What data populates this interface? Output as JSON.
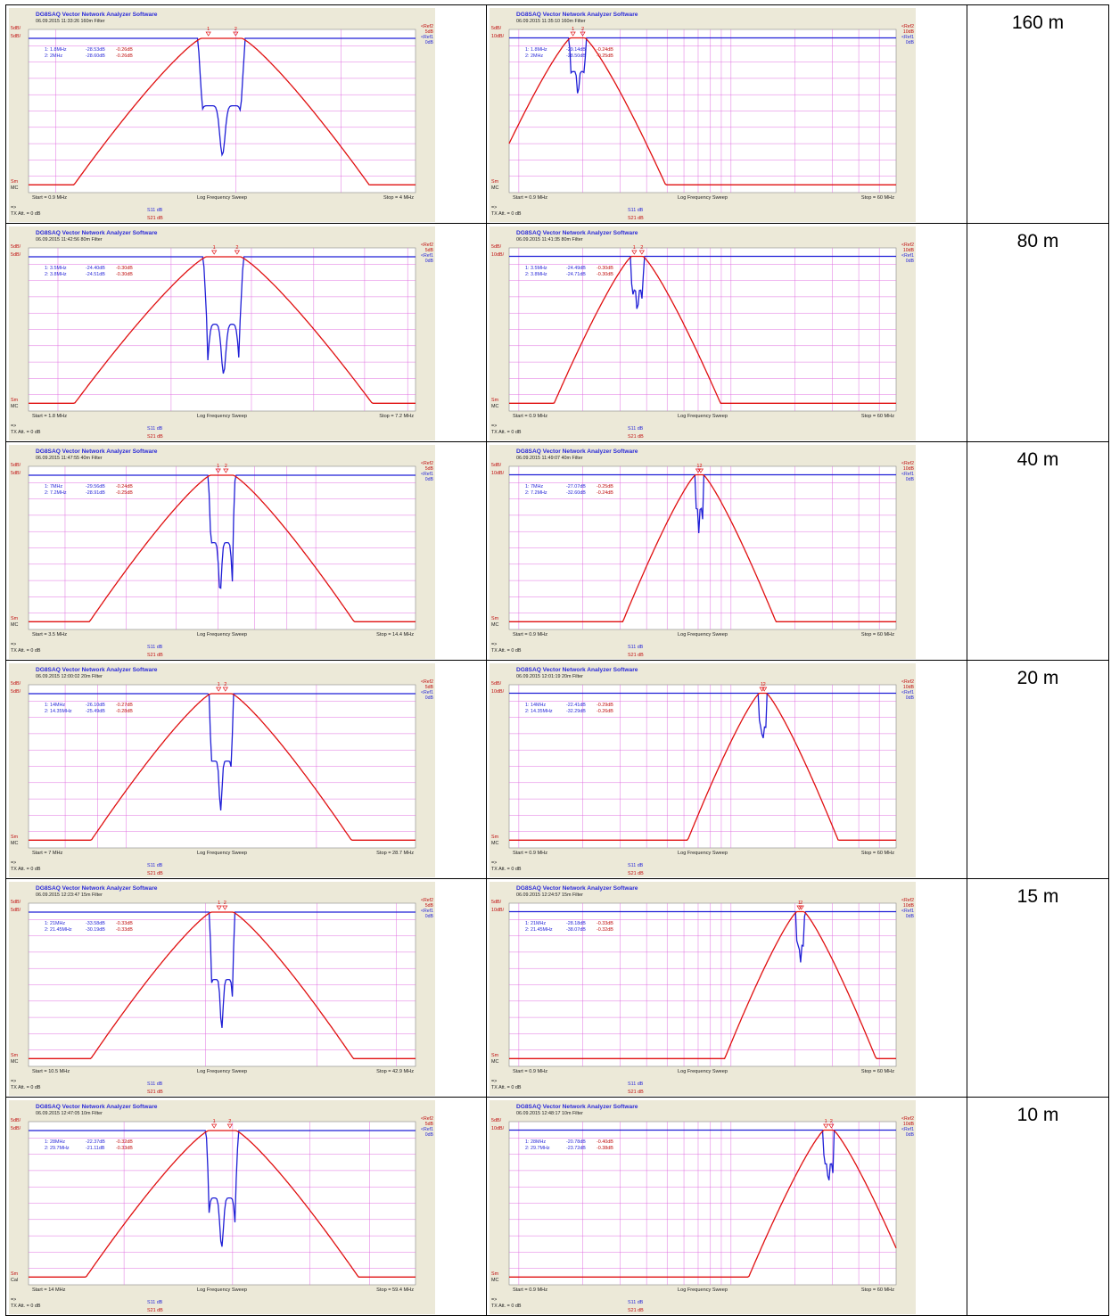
{
  "app_title": "DG8SAQ Vector Network Analyzer Software",
  "colors": {
    "s11": "#1f1fd6",
    "s21": "#e01010",
    "grid": "#e070e0",
    "panel": "#ece9d8",
    "plot_bg": "#ffffff"
  },
  "common": {
    "sweep_label": "Log Frequency Sweep",
    "ref1_label": "<Ref1",
    "ref1_value": "0dB",
    "ref2_label": "<Ref2",
    "scale_top": "5dB/",
    "sm_label": "Sm",
    "arrow": "=>",
    "tx_att": "TX Att.  = 0 dB",
    "s11_legend": "S11  dB",
    "s21_legend": "S21  dB"
  },
  "rows": [
    {
      "band": "160 m",
      "left": {
        "stamp": "06.09.2015  11:33:26   160m Filter",
        "start": "Start = 0.9 MHz",
        "stop": "Stop = 4 MHz",
        "scale2": "5dB/",
        "ref2_value": "5dB",
        "mode": "MC",
        "markers": [
          [
            "1: 1.8MHz",
            "-28.53dB",
            "-0.26dB"
          ],
          [
            "2: 2MHz",
            "-28.60dB",
            "-0.26dB"
          ]
        ]
      },
      "right": {
        "stamp": "06.09.2015  11:35:10   160m Filter",
        "start": "Start = 0.9 MHz",
        "stop": "Stop = 60 MHz",
        "scale2": "10dB/",
        "ref2_value": "10dB",
        "mode": "MC",
        "markers": [
          [
            "1: 1.8MHz",
            "-29.14dB",
            "-0.24dB"
          ],
          [
            "2: 2MHz",
            "-28.50dB",
            "-0.25dB"
          ]
        ]
      }
    },
    {
      "band": "80 m",
      "left": {
        "stamp": "06.09.2015  11:42:56   80m Filter",
        "start": "Start = 1.8 MHz",
        "stop": "Stop = 7.2 MHz",
        "scale2": "5dB/",
        "ref2_value": "5dB",
        "mode": "MC",
        "markers": [
          [
            "1: 3.5MHz",
            "-24.40dB",
            "-0.30dB"
          ],
          [
            "2: 3.8MHz",
            "-24.51dB",
            "-0.30dB"
          ]
        ]
      },
      "right": {
        "stamp": "06.09.2015  11:41:35   80m Filter",
        "start": "Start = 0.9 MHz",
        "stop": "Stop = 60 MHz",
        "scale2": "10dB/",
        "ref2_value": "10dB",
        "mode": "MC",
        "markers": [
          [
            "1: 3.5MHz",
            "-24.49dB",
            "-0.30dB"
          ],
          [
            "2: 3.8MHz",
            "-24.71dB",
            "-0.30dB"
          ]
        ]
      }
    },
    {
      "band": "40 m",
      "left": {
        "stamp": "06.09.2015  11:47:55   40m Filter",
        "start": "Start = 3.5 MHz",
        "stop": "Stop = 14.4 MHz",
        "scale2": "5dB/",
        "ref2_value": "5dB",
        "mode": "MC",
        "markers": [
          [
            "1: 7MHz",
            "-29.56dB",
            "-0.24dB"
          ],
          [
            "2: 7.2MHz",
            "-28.91dB",
            "-0.25dB"
          ]
        ]
      },
      "right": {
        "stamp": "06.09.2015  11:49:07   40m Filter",
        "start": "Start = 0.9 MHz",
        "stop": "Stop = 60 MHz",
        "scale2": "10dB/",
        "ref2_value": "10dB",
        "mode": "MC",
        "markers": [
          [
            "1: 7MHz",
            "-27.07dB",
            "-0.25dB"
          ],
          [
            "2: 7.2MHz",
            "-32.60dB",
            "-0.24dB"
          ]
        ]
      }
    },
    {
      "band": "20 m",
      "left": {
        "stamp": "06.09.2015  12:00:02   20m Filter",
        "start": "Start = 7 MHz",
        "stop": "Stop = 28.7 MHz",
        "scale2": "5dB/",
        "ref2_value": "5dB",
        "mode": "MC",
        "markers": [
          [
            "1: 14MHz",
            "-26.10dB",
            "-0.27dB"
          ],
          [
            "2: 14.35MHz",
            "-25.49dB",
            "-0.28dB"
          ]
        ]
      },
      "right": {
        "stamp": "06.09.2015  12:01:19   20m Filter",
        "start": "Start = 0.9 MHz",
        "stop": "Stop = 60 MHz",
        "scale2": "10dB/",
        "ref2_value": "10dB",
        "mode": "MC",
        "markers": [
          [
            "1: 14MHz",
            "-22.41dB",
            "-0.29dB"
          ],
          [
            "2: 14.35MHz",
            "-32.29dB",
            "-0.26dB"
          ]
        ]
      }
    },
    {
      "band": "15 m",
      "left": {
        "stamp": "06.09.2015  12:23:47   15m Filter",
        "start": "Start = 10.5 MHz",
        "stop": "Stop = 42.9 MHz",
        "scale2": "5dB/",
        "ref2_value": "5dB",
        "mode": "MC",
        "markers": [
          [
            "1: 21MHz",
            "-33.58dB",
            "-0.33dB"
          ],
          [
            "2: 21.45MHz",
            "-30.19dB",
            "-0.33dB"
          ]
        ]
      },
      "right": {
        "stamp": "06.09.2015  12:24:57   15m Filter",
        "start": "Start = 0.9 MHz",
        "stop": "Stop = 60 MHz",
        "scale2": "10dB/",
        "ref2_value": "10dB",
        "mode": "MC",
        "markers": [
          [
            "1: 21MHz",
            "-28.18dB",
            "-0.33dB"
          ],
          [
            "2: 21.45MHz",
            "-38.07dB",
            "-0.32dB"
          ]
        ]
      }
    },
    {
      "band": "10 m",
      "left": {
        "stamp": "06.09.2015  12:47:05   10m Filter",
        "start": "Start = 14 MHz",
        "stop": "Stop = 59.4 MHz",
        "scale2": "5dB/",
        "ref2_value": "5dB",
        "mode": "Cal",
        "markers": [
          [
            "1: 28MHz",
            "-22.37dB",
            "-0.32dB"
          ],
          [
            "2: 29.7MHz",
            "-21.11dB",
            "-0.33dB"
          ]
        ]
      },
      "right": {
        "stamp": "06.09.2015  12:48:17   10m Filter",
        "start": "Start = 0.9 MHz",
        "stop": "Stop = 60 MHz",
        "scale2": "10dB/",
        "ref2_value": "10dB",
        "mode": "MC",
        "markers": [
          [
            "1: 28MHz",
            "-20.78dB",
            "-0.40dB"
          ],
          [
            "2: 29.7MHz",
            "-23.72dB",
            "-0.38dB"
          ]
        ]
      }
    }
  ],
  "chart_data": [
    {
      "type": "line",
      "band": "160m",
      "x_scale": "log",
      "xlim": [
        0.9,
        4
      ],
      "x_unit": "MHz",
      "title": "DG8SAQ Vector Network Analyzer Software",
      "xlabel": "Log Frequency Sweep",
      "markers_mhz": [
        1.8,
        2.0
      ],
      "series": [
        {
          "name": "S11",
          "s11_notches": [
            [
              1.72,
              -38
            ],
            [
              1.9,
              -38
            ],
            [
              2.08,
              -38
            ]
          ]
        },
        {
          "name": "S21",
          "passband": [
            1.75,
            2.05
          ]
        }
      ]
    },
    {
      "type": "line",
      "band": "160m",
      "x_scale": "log",
      "xlim": [
        0.9,
        60
      ],
      "x_unit": "MHz",
      "title": "DG8SAQ Vector Network Analyzer Software",
      "xlabel": "Log Frequency Sweep",
      "markers_mhz": [
        1.8,
        2.0
      ],
      "series": [
        {
          "name": "S11",
          "s11_notches": [
            [
              1.72,
              -38
            ],
            [
              1.9,
              -38
            ],
            [
              2.08,
              -38
            ]
          ]
        },
        {
          "name": "S21",
          "passband": [
            1.75,
            2.05
          ]
        }
      ]
    },
    {
      "type": "line",
      "band": "80m",
      "x_scale": "log",
      "xlim": [
        1.8,
        7.2
      ],
      "x_unit": "MHz",
      "title": "DG8SAQ Vector Network Analyzer Software",
      "xlabel": "Log Frequency Sweep",
      "markers_mhz": [
        3.5,
        3.8
      ],
      "series": [
        {
          "name": "S11",
          "s11_notches": [
            [
              3.4,
              -38
            ],
            [
              3.62,
              -38
            ],
            [
              3.85,
              -38
            ]
          ]
        },
        {
          "name": "S21",
          "passband": [
            3.4,
            3.85
          ]
        }
      ]
    },
    {
      "type": "line",
      "band": "80m",
      "x_scale": "log",
      "xlim": [
        0.9,
        60
      ],
      "x_unit": "MHz",
      "title": "DG8SAQ Vector Network Analyzer Software",
      "xlabel": "Log Frequency Sweep",
      "markers_mhz": [
        3.5,
        3.8
      ],
      "series": [
        {
          "name": "S11",
          "s11_notches": [
            [
              3.4,
              -38
            ],
            [
              3.62,
              -38
            ],
            [
              3.85,
              -38
            ]
          ]
        },
        {
          "name": "S21",
          "passband": [
            3.4,
            3.85
          ]
        }
      ]
    },
    {
      "type": "line",
      "band": "40m",
      "x_scale": "log",
      "xlim": [
        3.5,
        14.4
      ],
      "x_unit": "MHz",
      "title": "DG8SAQ Vector Network Analyzer Software",
      "xlabel": "Log Frequency Sweep",
      "markers_mhz": [
        7.0,
        7.2
      ],
      "series": [
        {
          "name": "S11",
          "s11_notches": [
            [
              6.72,
              -38
            ],
            [
              7.05,
              -38
            ],
            [
              7.4,
              -38
            ]
          ]
        },
        {
          "name": "S21",
          "passband": [
            6.8,
            7.4
          ]
        }
      ]
    },
    {
      "type": "line",
      "band": "40m",
      "x_scale": "log",
      "xlim": [
        0.9,
        60
      ],
      "x_unit": "MHz",
      "title": "DG8SAQ Vector Network Analyzer Software",
      "xlabel": "Log Frequency Sweep",
      "markers_mhz": [
        7.0,
        7.2
      ],
      "series": [
        {
          "name": "S11",
          "s11_notches": [
            [
              6.72,
              -38
            ],
            [
              7.05,
              -38
            ],
            [
              7.4,
              -38
            ]
          ]
        },
        {
          "name": "S21",
          "passband": [
            6.8,
            7.4
          ]
        }
      ]
    },
    {
      "type": "line",
      "band": "20m",
      "x_scale": "log",
      "xlim": [
        7,
        28.7
      ],
      "x_unit": "MHz",
      "title": "DG8SAQ Vector Network Analyzer Software",
      "xlabel": "Log Frequency Sweep",
      "markers_mhz": [
        14.0,
        14.35
      ],
      "series": [
        {
          "name": "S11",
          "s11_notches": [
            [
              13.4,
              -38
            ],
            [
              14.1,
              -38
            ],
            [
              14.8,
              -38
            ]
          ]
        },
        {
          "name": "S21",
          "passband": [
            13.6,
            14.7
          ]
        }
      ]
    },
    {
      "type": "line",
      "band": "20m",
      "x_scale": "log",
      "xlim": [
        0.9,
        60
      ],
      "x_unit": "MHz",
      "title": "DG8SAQ Vector Network Analyzer Software",
      "xlabel": "Log Frequency Sweep",
      "markers_mhz": [
        14.0,
        14.35
      ],
      "series": [
        {
          "name": "S11",
          "s11_notches": [
            [
              13.4,
              -38
            ],
            [
              14.1,
              -38
            ],
            [
              14.8,
              -38
            ]
          ]
        },
        {
          "name": "S21",
          "passband": [
            13.6,
            14.7
          ]
        }
      ]
    },
    {
      "type": "line",
      "band": "15m",
      "x_scale": "log",
      "xlim": [
        10.5,
        42.9
      ],
      "x_unit": "MHz",
      "title": "DG8SAQ Vector Network Analyzer Software",
      "xlabel": "Log Frequency Sweep",
      "markers_mhz": [
        21.0,
        21.45
      ],
      "series": [
        {
          "name": "S11",
          "s11_notches": [
            [
              20.2,
              -38
            ],
            [
              21.2,
              -38
            ],
            [
              22.2,
              -38
            ]
          ]
        },
        {
          "name": "S21",
          "passband": [
            20.4,
            22.1
          ]
        }
      ]
    },
    {
      "type": "line",
      "band": "15m",
      "x_scale": "log",
      "xlim": [
        0.9,
        60
      ],
      "x_unit": "MHz",
      "title": "DG8SAQ Vector Network Analyzer Software",
      "xlabel": "Log Frequency Sweep",
      "markers_mhz": [
        21.0,
        21.45
      ],
      "series": [
        {
          "name": "S11",
          "s11_notches": [
            [
              20.2,
              -38
            ],
            [
              21.2,
              -38
            ],
            [
              22.2,
              -38
            ]
          ]
        },
        {
          "name": "S21",
          "passband": [
            20.4,
            22.1
          ]
        }
      ]
    },
    {
      "type": "line",
      "band": "10m",
      "x_scale": "log",
      "xlim": [
        14,
        59.4
      ],
      "x_unit": "MHz",
      "title": "DG8SAQ Vector Network Analyzer Software",
      "xlabel": "Log Frequency Sweep",
      "markers_mhz": [
        28.0,
        29.7
      ],
      "series": [
        {
          "name": "S11",
          "s11_notches": [
            [
              27.2,
              -38
            ],
            [
              28.8,
              -38
            ],
            [
              30.5,
              -38
            ]
          ]
        },
        {
          "name": "S21",
          "passband": [
            27.4,
            30.4
          ]
        }
      ]
    },
    {
      "type": "line",
      "band": "10m",
      "x_scale": "log",
      "xlim": [
        0.9,
        60
      ],
      "x_unit": "MHz",
      "title": "DG8SAQ Vector Network Analyzer Software",
      "xlabel": "Log Frequency Sweep",
      "markers_mhz": [
        28.0,
        29.7
      ],
      "series": [
        {
          "name": "S11",
          "s11_notches": [
            [
              27.2,
              -38
            ],
            [
              28.8,
              -38
            ],
            [
              30.5,
              -38
            ]
          ]
        },
        {
          "name": "S21",
          "passband": [
            27.4,
            30.4
          ]
        }
      ]
    }
  ]
}
